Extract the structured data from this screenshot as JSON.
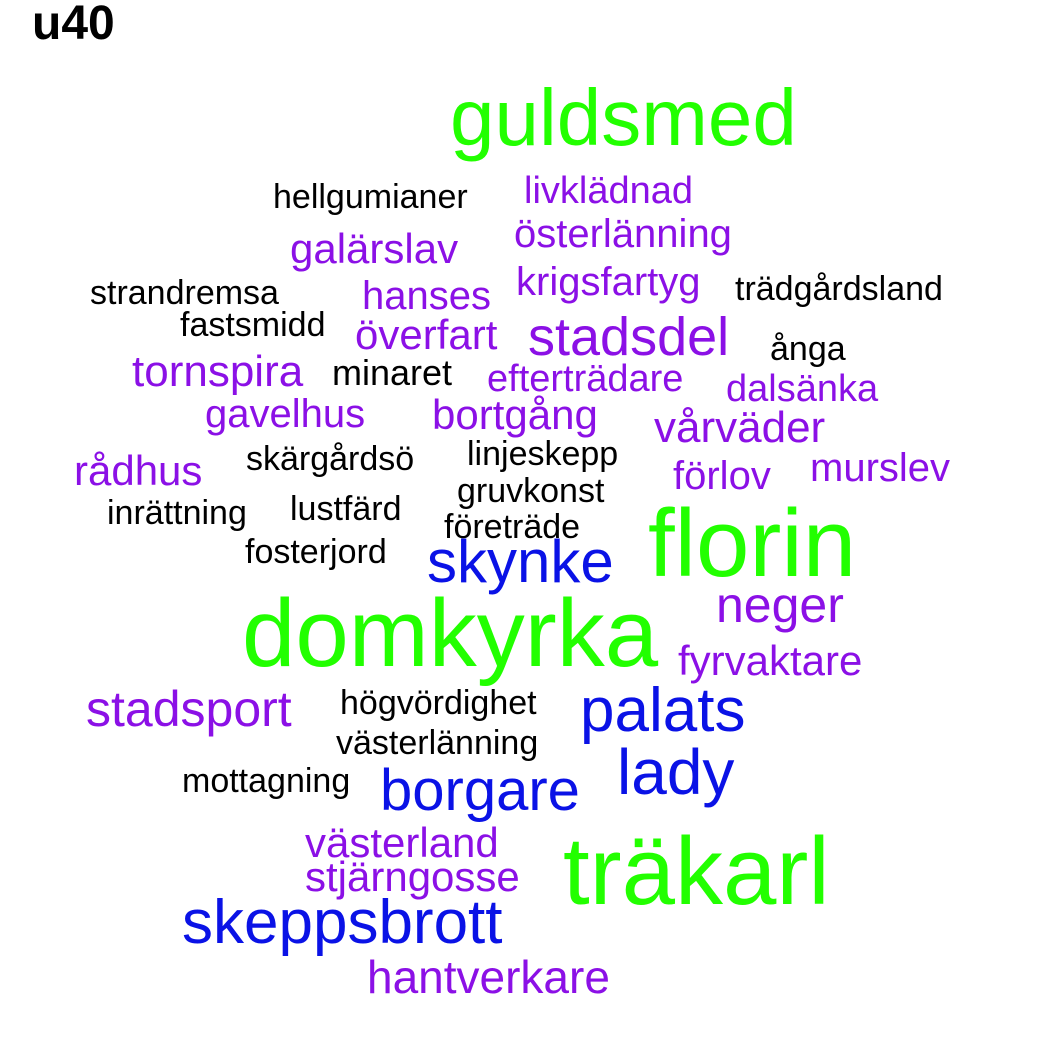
{
  "title": "u40",
  "colors": {
    "green": "#22ff00",
    "purple": "#8b10e6",
    "blue": "#0a12e6",
    "black": "#000000"
  },
  "words": [
    {
      "text": "guldsmed",
      "color": "green"
    },
    {
      "text": "livklädnad",
      "color": "purple"
    },
    {
      "text": "hellgumianer",
      "color": "black"
    },
    {
      "text": "österlänning",
      "color": "purple"
    },
    {
      "text": "galärslav",
      "color": "purple"
    },
    {
      "text": "krigsfartyg",
      "color": "purple"
    },
    {
      "text": "trädgårdsland",
      "color": "black"
    },
    {
      "text": "strandremsa",
      "color": "black"
    },
    {
      "text": "hanses",
      "color": "purple"
    },
    {
      "text": "fastsmidd",
      "color": "black"
    },
    {
      "text": "överfart",
      "color": "purple"
    },
    {
      "text": "stadsdel",
      "color": "purple"
    },
    {
      "text": "ånga",
      "color": "black"
    },
    {
      "text": "tornspira",
      "color": "purple"
    },
    {
      "text": "minaret",
      "color": "black"
    },
    {
      "text": "efterträdare",
      "color": "purple"
    },
    {
      "text": "dalsänka",
      "color": "purple"
    },
    {
      "text": "gavelhus",
      "color": "purple"
    },
    {
      "text": "bortgång",
      "color": "purple"
    },
    {
      "text": "vårväder",
      "color": "purple"
    },
    {
      "text": "rådhus",
      "color": "purple"
    },
    {
      "text": "skärgårdsö",
      "color": "black"
    },
    {
      "text": "linjeskepp",
      "color": "black"
    },
    {
      "text": "förlov",
      "color": "purple"
    },
    {
      "text": "murslev",
      "color": "purple"
    },
    {
      "text": "gruvkonst",
      "color": "black"
    },
    {
      "text": "inrättning",
      "color": "black"
    },
    {
      "text": "lustfärd",
      "color": "black"
    },
    {
      "text": "företräde",
      "color": "black"
    },
    {
      "text": "florin",
      "color": "green"
    },
    {
      "text": "fosterjord",
      "color": "black"
    },
    {
      "text": "skynke",
      "color": "blue"
    },
    {
      "text": "neger",
      "color": "purple"
    },
    {
      "text": "domkyrka",
      "color": "green"
    },
    {
      "text": "fyrvaktare",
      "color": "purple"
    },
    {
      "text": "stadsport",
      "color": "purple"
    },
    {
      "text": "högvördighet",
      "color": "black"
    },
    {
      "text": "palats",
      "color": "blue"
    },
    {
      "text": "västerlänning",
      "color": "black"
    },
    {
      "text": "lady",
      "color": "blue"
    },
    {
      "text": "mottagning",
      "color": "black"
    },
    {
      "text": "borgare",
      "color": "blue"
    },
    {
      "text": "västerland",
      "color": "purple"
    },
    {
      "text": "träkarl",
      "color": "green"
    },
    {
      "text": "stjärngosse",
      "color": "purple"
    },
    {
      "text": "skeppsbrott",
      "color": "blue"
    },
    {
      "text": "hantverkare",
      "color": "purple"
    }
  ]
}
